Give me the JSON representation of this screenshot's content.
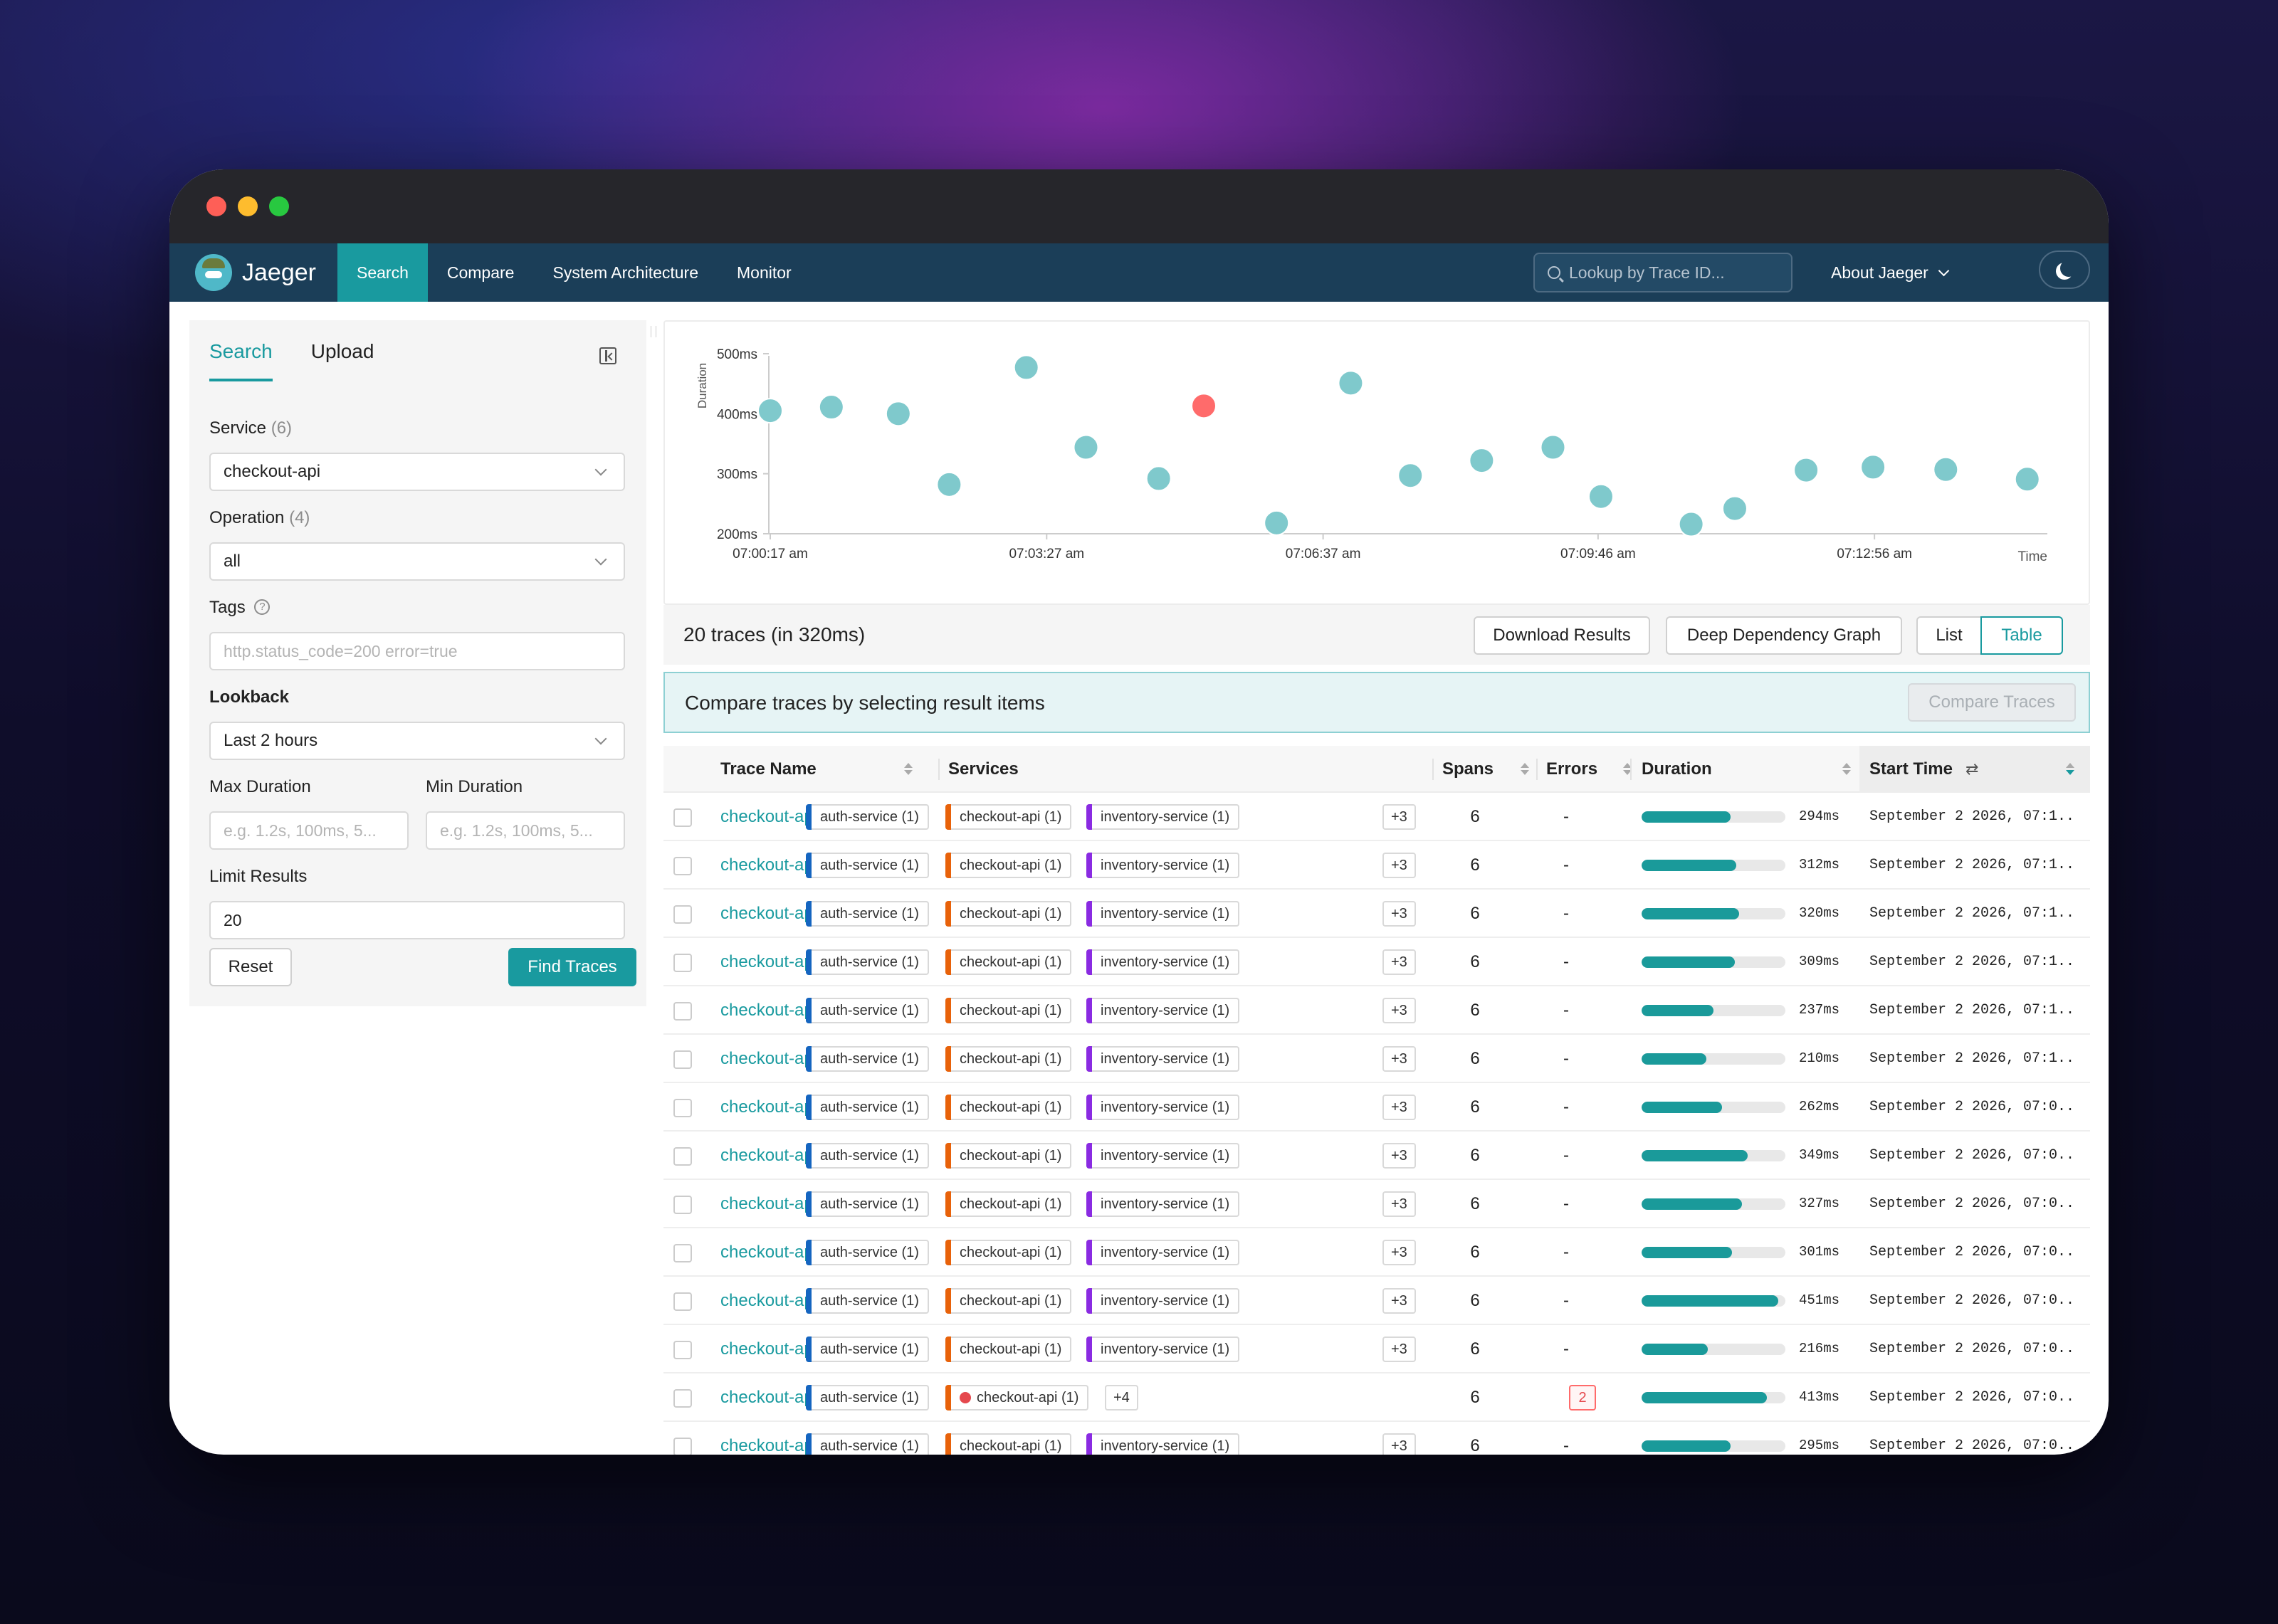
{
  "colors": {
    "accent": "#199a9f",
    "nav_bg": "#1b3e58",
    "error": "#ff6b6b",
    "point": "#7fc9cc",
    "service_auth": "#1565c0",
    "service_checkout": "#e8620a",
    "service_inventory": "#8a2be2"
  },
  "nav": {
    "brand": "Jaeger",
    "items": [
      "Search",
      "Compare",
      "System Architecture",
      "Monitor"
    ],
    "lookup_placeholder": "Lookup by Trace ID...",
    "about": "About Jaeger"
  },
  "sidebar": {
    "tabs": [
      "Search",
      "Upload"
    ],
    "service_label": "Service",
    "service_count": "(6)",
    "service_value": "checkout-api",
    "operation_label": "Operation",
    "operation_count": "(4)",
    "operation_value": "all",
    "tags_label": "Tags",
    "tags_placeholder": "http.status_code=200 error=true",
    "lookback_label": "Lookback",
    "lookback_value": "Last 2 hours",
    "max_duration_label": "Max Duration",
    "max_duration_placeholder": "e.g. 1.2s, 100ms, 5...",
    "min_duration_label": "Min Duration",
    "min_duration_placeholder": "e.g. 1.2s, 100ms, 5...",
    "limit_label": "Limit Results",
    "limit_value": "20",
    "reset_label": "Reset",
    "find_label": "Find Traces"
  },
  "chart_data": {
    "type": "scatter",
    "ylabel": "Duration",
    "xlabel": "Time",
    "y_ticks": [
      "500ms",
      "400ms",
      "300ms",
      "200ms"
    ],
    "x_ticks": [
      "07:00:17 am",
      "07:03:27 am",
      "07:06:37 am",
      "07:09:46 am",
      "07:12:56 am"
    ],
    "ylim": [
      200,
      500
    ],
    "x_unit": "seconds since 07:00:17 am",
    "xlim": [
      0,
      870
    ],
    "points": [
      {
        "x": 0,
        "y": 405,
        "error": false
      },
      {
        "x": 42,
        "y": 411,
        "error": false
      },
      {
        "x": 88,
        "y": 400,
        "error": false
      },
      {
        "x": 123,
        "y": 282,
        "error": false
      },
      {
        "x": 176,
        "y": 477,
        "error": false
      },
      {
        "x": 217,
        "y": 344,
        "error": false
      },
      {
        "x": 267,
        "y": 292,
        "error": false
      },
      {
        "x": 298,
        "y": 413,
        "error": true
      },
      {
        "x": 348,
        "y": 218,
        "error": false
      },
      {
        "x": 399,
        "y": 451,
        "error": false
      },
      {
        "x": 440,
        "y": 297,
        "error": false
      },
      {
        "x": 489,
        "y": 322,
        "error": false
      },
      {
        "x": 538,
        "y": 344,
        "error": false
      },
      {
        "x": 571,
        "y": 262,
        "error": false
      },
      {
        "x": 633,
        "y": 216,
        "error": false
      },
      {
        "x": 663,
        "y": 242,
        "error": false
      },
      {
        "x": 712,
        "y": 306,
        "error": false
      },
      {
        "x": 758,
        "y": 311,
        "error": false
      },
      {
        "x": 808,
        "y": 307,
        "error": false
      },
      {
        "x": 864,
        "y": 291,
        "error": false
      }
    ]
  },
  "summary": {
    "text": "20 traces (in 320ms)",
    "download": "Download Results",
    "ddg": "Deep Dependency Graph",
    "list": "List",
    "table": "Table"
  },
  "compare": {
    "text": "Compare traces by selecting result items",
    "button": "Compare Traces"
  },
  "table": {
    "columns": [
      "Trace Name",
      "Services",
      "Spans",
      "Errors",
      "Duration",
      "Start Time"
    ],
    "rows": [
      {
        "name": "checkout-api: POST /api/...",
        "spans": "6",
        "errors": "-",
        "duration": "294ms",
        "ratio": 0.62,
        "start": "September 2 2026, 07:1...",
        "error_row": false
      },
      {
        "name": "checkout-api: GET /api/p...",
        "spans": "6",
        "errors": "-",
        "duration": "312ms",
        "ratio": 0.66,
        "start": "September 2 2026, 07:1...",
        "error_row": false
      },
      {
        "name": "checkout-api: GET /api/c...",
        "spans": "6",
        "errors": "-",
        "duration": "320ms",
        "ratio": 0.68,
        "start": "September 2 2026, 07:1...",
        "error_row": false
      },
      {
        "name": "checkout-api: POST /api/...",
        "spans": "6",
        "errors": "-",
        "duration": "309ms",
        "ratio": 0.65,
        "start": "September 2 2026, 07:1...",
        "error_row": false
      },
      {
        "name": "checkout-api: POST /api/...",
        "spans": "6",
        "errors": "-",
        "duration": "237ms",
        "ratio": 0.5,
        "start": "September 2 2026, 07:1...",
        "error_row": false
      },
      {
        "name": "checkout-api: GET /api/p...",
        "spans": "6",
        "errors": "-",
        "duration": "210ms",
        "ratio": 0.45,
        "start": "September 2 2026, 07:1...",
        "error_row": false
      },
      {
        "name": "checkout-api: GET /api/c...",
        "spans": "6",
        "errors": "-",
        "duration": "262ms",
        "ratio": 0.56,
        "start": "September 2 2026, 07:0...",
        "error_row": false
      },
      {
        "name": "checkout-api: POST /api/...",
        "spans": "6",
        "errors": "-",
        "duration": "349ms",
        "ratio": 0.74,
        "start": "September 2 2026, 07:0...",
        "error_row": false
      },
      {
        "name": "checkout-api: POST /api/...",
        "spans": "6",
        "errors": "-",
        "duration": "327ms",
        "ratio": 0.7,
        "start": "September 2 2026, 07:0...",
        "error_row": false
      },
      {
        "name": "checkout-api: GET /api/p...",
        "spans": "6",
        "errors": "-",
        "duration": "301ms",
        "ratio": 0.63,
        "start": "September 2 2026, 07:0...",
        "error_row": false
      },
      {
        "name": "checkout-api: GET /api/c...",
        "spans": "6",
        "errors": "-",
        "duration": "451ms",
        "ratio": 0.95,
        "start": "September 2 2026, 07:0...",
        "error_row": false
      },
      {
        "name": "checkout-api: POST /api/...",
        "spans": "6",
        "errors": "-",
        "duration": "216ms",
        "ratio": 0.46,
        "start": "September 2 2026, 07:0...",
        "error_row": false
      },
      {
        "name": "checkout-api: POST /api/...",
        "spans": "6",
        "errors": "2",
        "duration": "413ms",
        "ratio": 0.87,
        "start": "September 2 2026, 07:0...",
        "error_row": true
      },
      {
        "name": "checkout-api: GET /api/p...",
        "spans": "6",
        "errors": "-",
        "duration": "295ms",
        "ratio": 0.62,
        "start": "September 2 2026, 07:0...",
        "error_row": false
      }
    ],
    "service_tags": [
      "auth-service (1)",
      "checkout-api (1)",
      "inventory-service (1)"
    ],
    "more_tag": "+3",
    "error_more_tag": "+4"
  }
}
